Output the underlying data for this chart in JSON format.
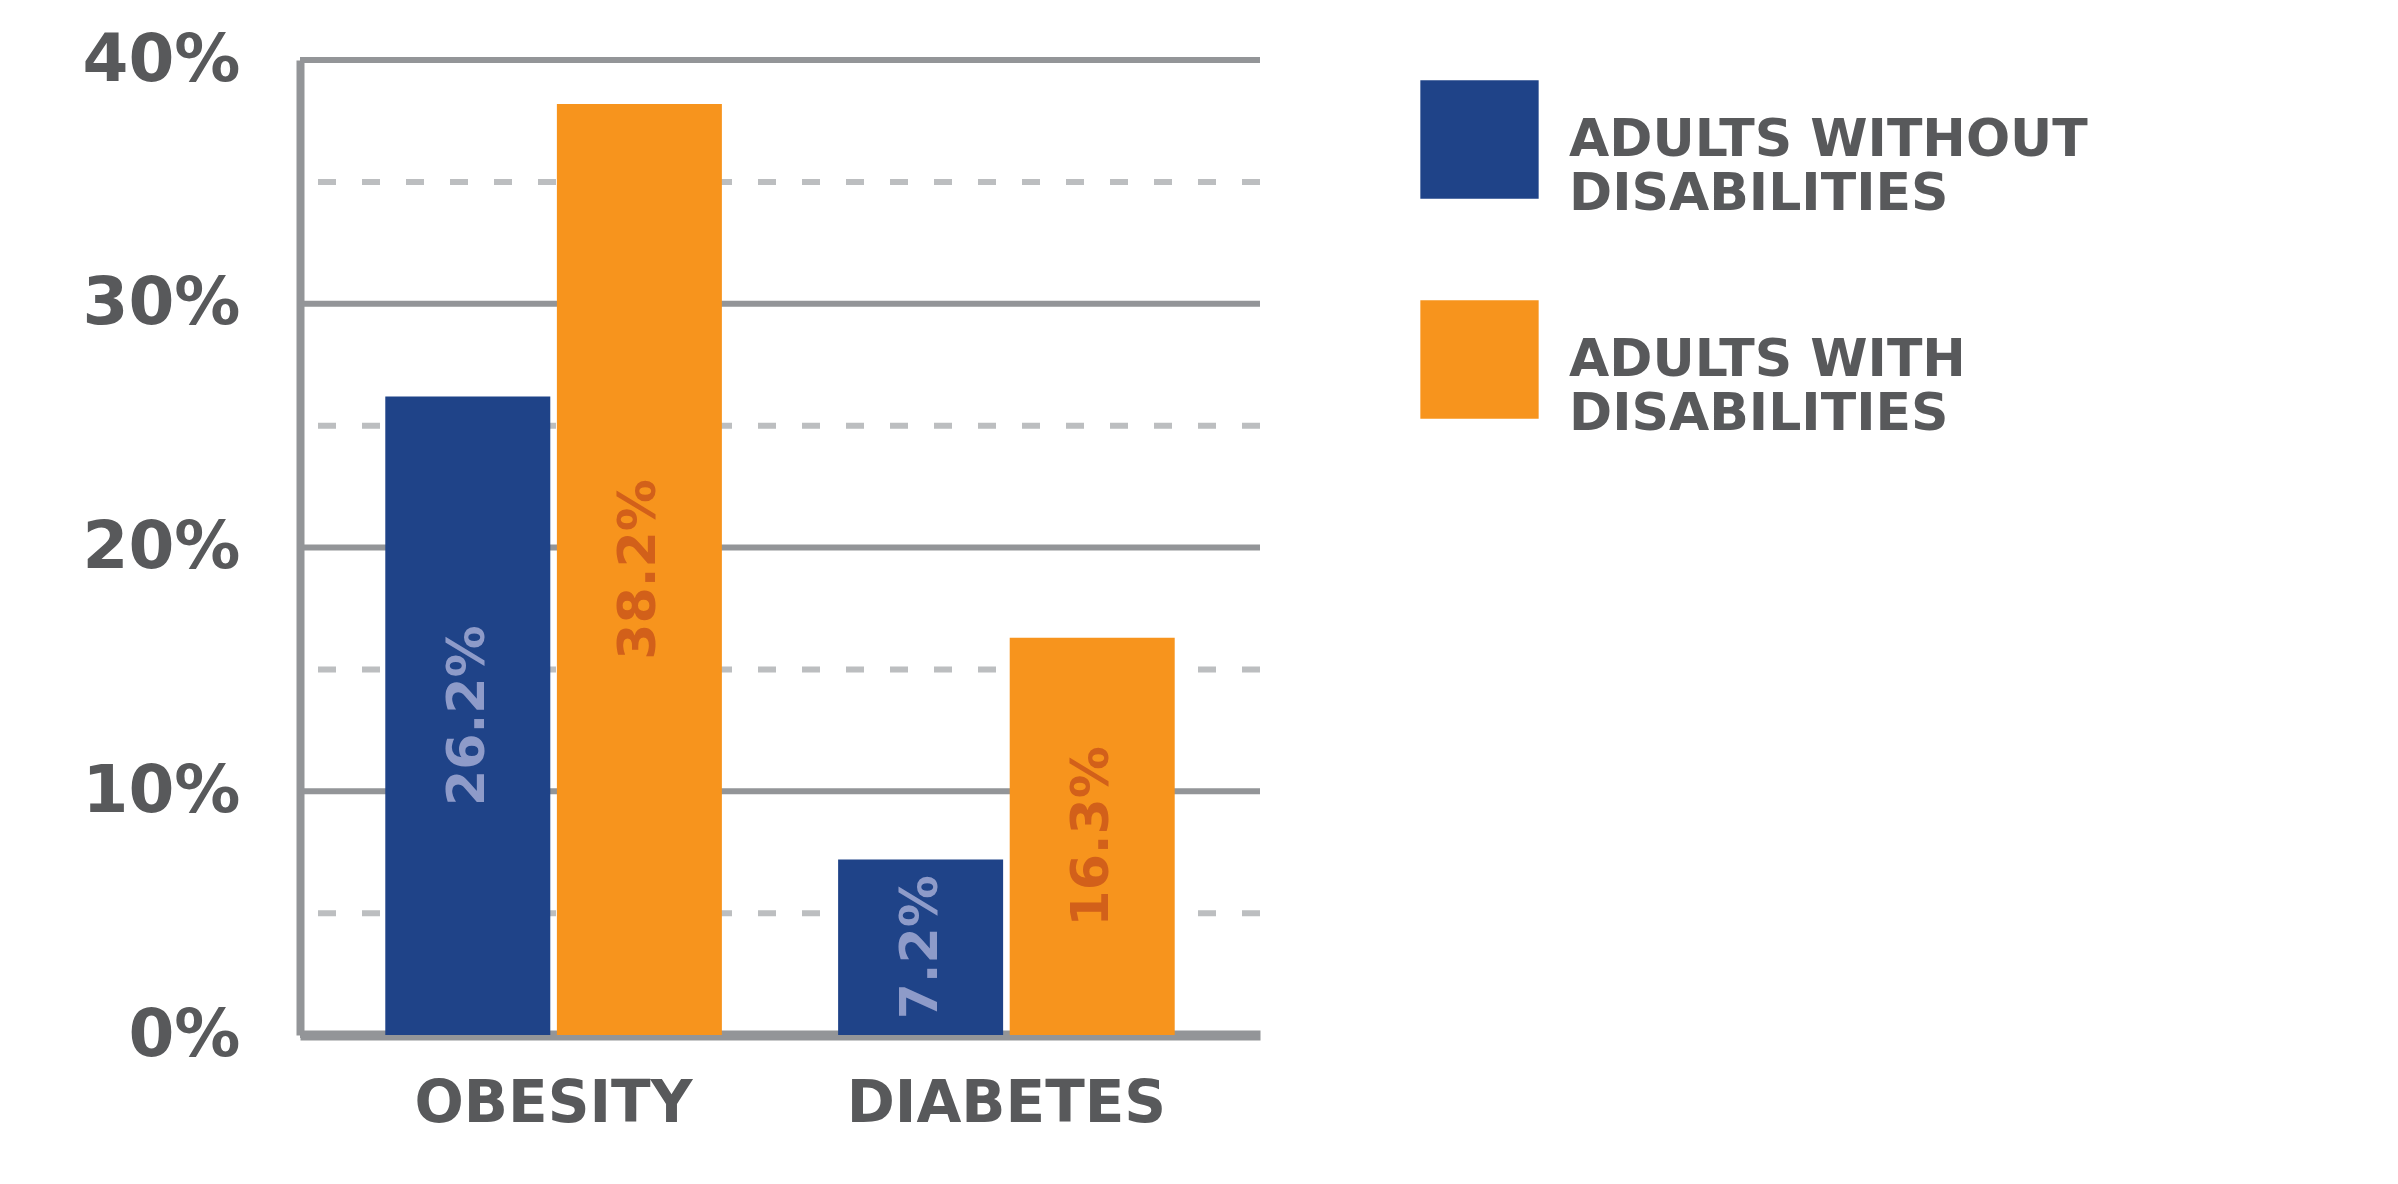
{
  "chart_data": {
    "type": "bar",
    "categories": [
      "OBESITY",
      "DIABETES"
    ],
    "series": [
      {
        "name": "ADULTS WITHOUT DISABILITIES",
        "color": "#1f4388",
        "values": [
          26.2,
          7.2
        ],
        "value_labels": [
          "26.2%",
          "7.2%"
        ]
      },
      {
        "name": "ADULTS WITH DISABILITIES",
        "color": "#f7941d",
        "values": [
          38.2,
          16.3
        ],
        "value_labels": [
          "38.2%",
          "16.3%"
        ]
      }
    ],
    "ylim": [
      0,
      40
    ],
    "yticks": [
      {
        "value": 0,
        "label": "0%"
      },
      {
        "value": 5,
        "label": null
      },
      {
        "value": 10,
        "label": "10%"
      },
      {
        "value": 15,
        "label": null
      },
      {
        "value": 20,
        "label": "20%"
      },
      {
        "value": 25,
        "label": null
      },
      {
        "value": 30,
        "label": "30%"
      },
      {
        "value": 35,
        "label": null
      },
      {
        "value": 40,
        "label": "40%"
      }
    ],
    "grid": true,
    "legend": "top right"
  }
}
